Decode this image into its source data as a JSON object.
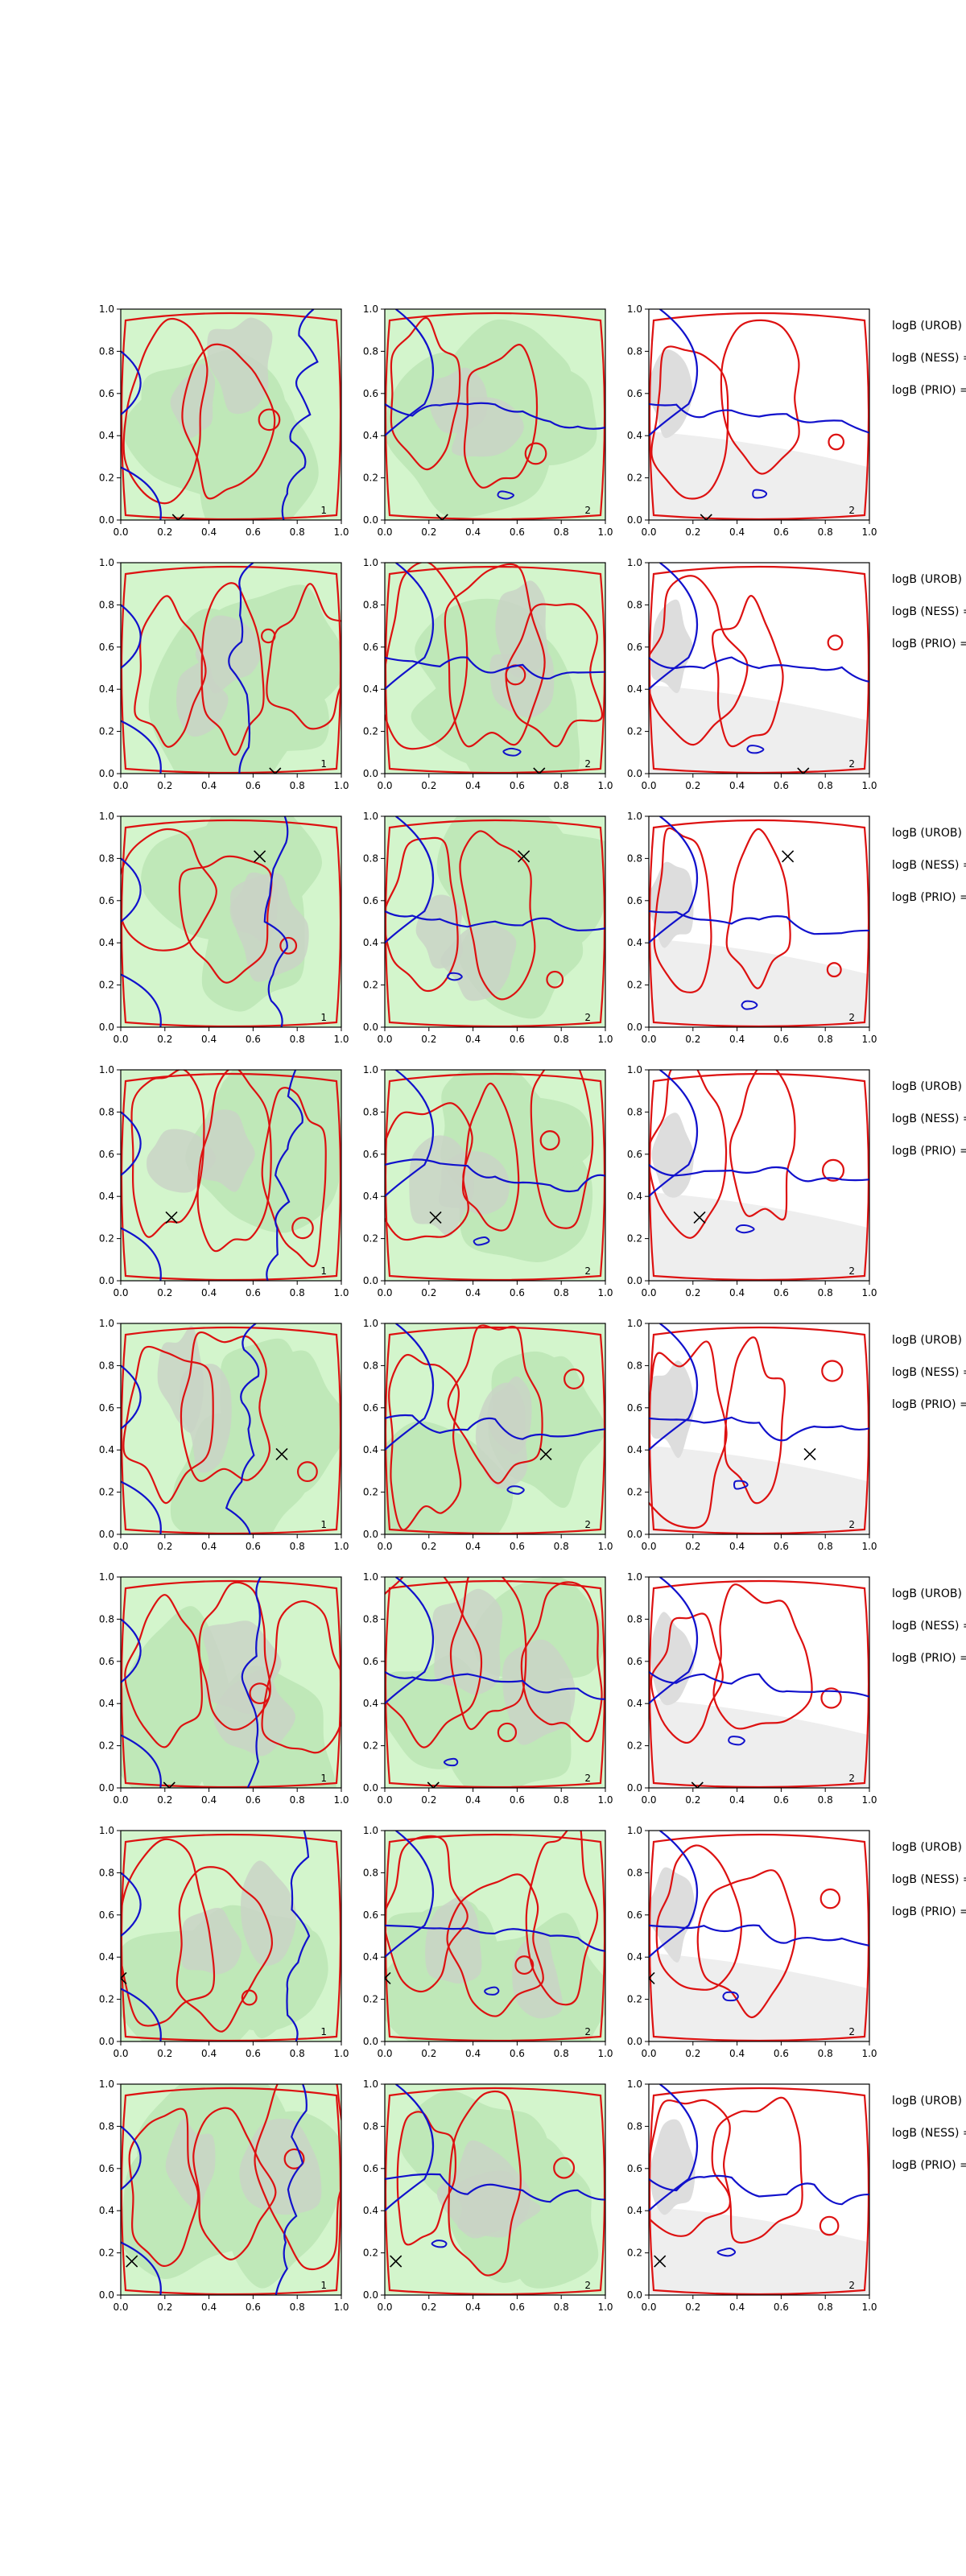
{
  "figure": {
    "rows": 8,
    "cols": 3,
    "x_ticks": [
      "0.0",
      "0.2",
      "0.4",
      "0.6",
      "0.8",
      "1.0"
    ],
    "y_ticks": [
      "0.0",
      "0.2",
      "0.4",
      "0.6",
      "0.8",
      "1.0"
    ],
    "side_labels": [
      "logB (UROB) =",
      "logB (NESS) =",
      "logB (PRIO) ="
    ],
    "panel_index_labels": [
      "1",
      "2",
      "2"
    ],
    "colors": {
      "contour_red": "#dd1111",
      "contour_blue": "#1111cc",
      "fill_green_light": "#d3f5cc",
      "fill_green_mid": "#bfe8b8",
      "fill_grey": "#c9d4c6",
      "fill_grey_light": "#eeeeee",
      "marker": "#000000",
      "axis": "#000000"
    }
  },
  "chart_data": {
    "type": "contour",
    "title": "",
    "xlabel": "",
    "ylabel": "",
    "xlim": [
      0,
      1
    ],
    "ylim": [
      0,
      1
    ],
    "grid": false,
    "panels_per_row": [
      {
        "column_1": "green filled contours with red and blue contour lines",
        "column_2": "green filled contours with red and blue contour lines",
        "column_3": "grey filled contours with red and blue contour lines"
      }
    ],
    "markers": [
      {
        "row": 1,
        "x": 0.26,
        "y": 0.0
      },
      {
        "row": 2,
        "x": 0.7,
        "y": 0.0
      },
      {
        "row": 3,
        "x": 0.63,
        "y": 0.81
      },
      {
        "row": 4,
        "x": 0.23,
        "y": 0.3
      },
      {
        "row": 5,
        "x": 0.73,
        "y": 0.38
      },
      {
        "row": 6,
        "x": 0.22,
        "y": 0.0
      },
      {
        "row": 7,
        "x": 0.0,
        "y": 0.3
      },
      {
        "row": 8,
        "x": 0.05,
        "y": 0.16
      }
    ]
  }
}
